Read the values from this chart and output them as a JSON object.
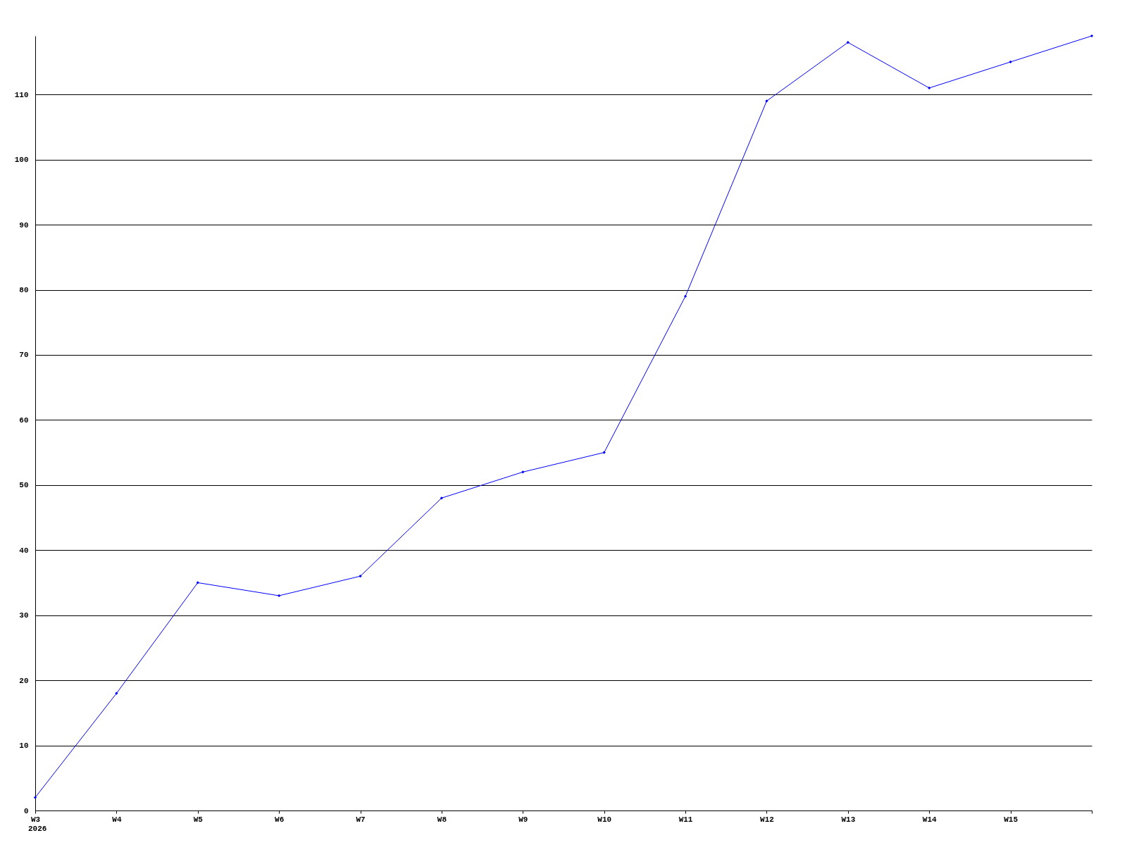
{
  "chart_data": {
    "type": "line",
    "categories": [
      "W3",
      "W4",
      "W5",
      "W6",
      "W7",
      "W8",
      "W9",
      "W10",
      "W11",
      "W12",
      "W13",
      "W14",
      "W15",
      null
    ],
    "series": [
      {
        "color": "#0000ff",
        "values": [
          2,
          18,
          35,
          33,
          36,
          48,
          52,
          55,
          79,
          109,
          118,
          111,
          115,
          119
        ]
      }
    ],
    "ylim": [
      0,
      119
    ],
    "yticks": [
      0,
      10,
      20,
      30,
      40,
      50,
      60,
      70,
      80,
      90,
      100,
      110
    ],
    "grid": "y",
    "marker": "diamond",
    "line_style": "solid",
    "legend": false,
    "annotations": [
      "2026"
    ]
  }
}
